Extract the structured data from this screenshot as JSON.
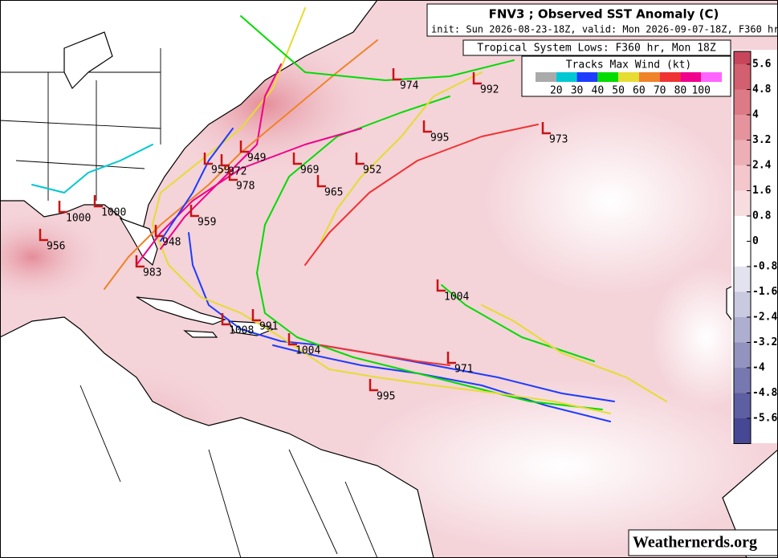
{
  "header": {
    "title": "FNV3 ; Observed SST Anomaly (C)",
    "subtitle": "init: Sun 2026-08-23-18Z, valid: Mon 2026-09-07-18Z, F360 hr",
    "lows_title": "Tropical System Lows: F360 hr, Mon 18Z"
  },
  "track_legend": {
    "title": "Tracks Max Wind (kt)",
    "colors": [
      "#aaaaaa",
      "#00c8d2",
      "#1e3cff",
      "#00dc00",
      "#e6dc32",
      "#f08228",
      "#f03232",
      "#f0008c",
      "#ff64ff"
    ],
    "labels": [
      20,
      30,
      40,
      50,
      60,
      70,
      80,
      100
    ]
  },
  "colorbar": {
    "ticks": [
      5.6,
      4.8,
      4,
      3.2,
      2.4,
      1.6,
      0.8,
      0,
      -0.8,
      -1.6,
      -2.4,
      -3.2,
      -4,
      -4.8,
      -5.6
    ],
    "colors": [
      "#c8465c",
      "#d2606f",
      "#dc7a86",
      "#e5949e",
      "#edafb6",
      "#f3c7cc",
      "#f8dde0",
      "#ffffff",
      "#ffffff",
      "#e3e3ef",
      "#c9c9e0",
      "#aeaed0",
      "#9393c0",
      "#7878b0",
      "#5e5ea2",
      "#474894"
    ]
  },
  "lows": [
    {
      "pressure": 974
    },
    {
      "pressure": 992
    },
    {
      "pressure": 995
    },
    {
      "pressure": 973
    },
    {
      "pressure": 949
    },
    {
      "pressure": 959
    },
    {
      "pressure": 972
    },
    {
      "pressure": 978
    },
    {
      "pressure": 969
    },
    {
      "pressure": 965
    },
    {
      "pressure": 952
    },
    {
      "pressure": 959
    },
    {
      "pressure": 1000
    },
    {
      "pressure": 1000
    },
    {
      "pressure": 956
    },
    {
      "pressure": 948
    },
    {
      "pressure": 983
    },
    {
      "pressure": 1004
    },
    {
      "pressure": 1008
    },
    {
      "pressure": 991
    },
    {
      "pressure": 1004
    },
    {
      "pressure": 971
    },
    {
      "pressure": 995
    }
  ],
  "credit": "Weathernerds.org"
}
